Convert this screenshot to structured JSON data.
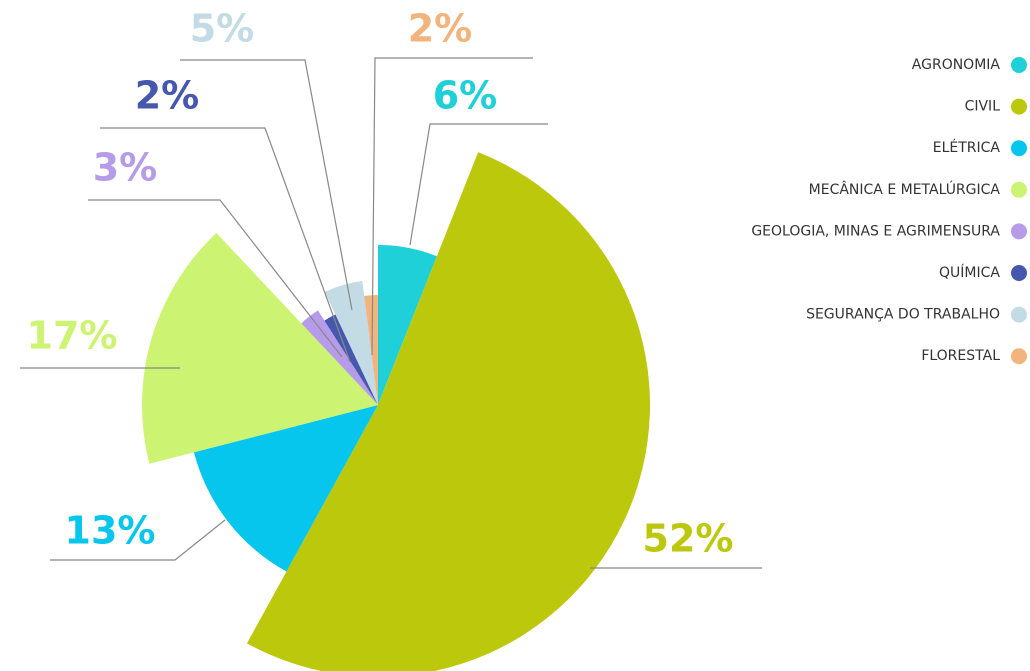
{
  "chart_data": {
    "type": "pie",
    "categories": [
      "AGRONOMIA",
      "CIVIL",
      "ELÉTRICA",
      "MECÂNICA E METALÚRGICA",
      "GEOLOGIA, MINAS E AGRIMENSURA",
      "QUÍMICA",
      "SEGURANÇA DO TRABALHO",
      "FLORESTAL"
    ],
    "values": [
      6,
      52,
      13,
      17,
      3,
      2,
      5,
      2
    ],
    "value_labels": [
      "6%",
      "52%",
      "13%",
      "17%",
      "3%",
      "2%",
      "5%",
      "2%"
    ],
    "colors": [
      "#1fd0d8",
      "#bcc80c",
      "#06c6ee",
      "#ccf472",
      "#b69ce8",
      "#4657ae",
      "#c3dbe4",
      "#f2b47c"
    ],
    "legend": "right"
  }
}
